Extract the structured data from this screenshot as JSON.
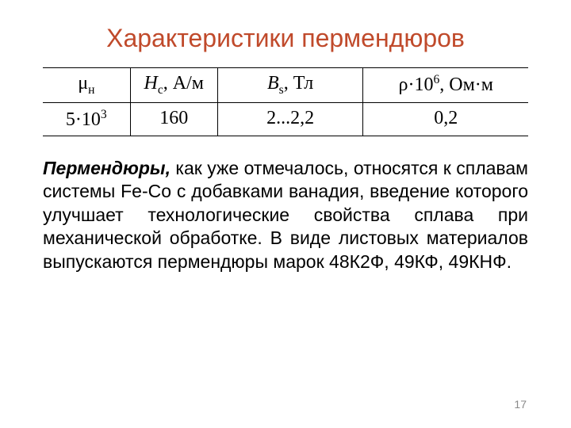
{
  "title": {
    "text": "Характеристики пермендюров",
    "color": "#c04a2b",
    "fontsize": 32
  },
  "table": {
    "font_family": "Times New Roman",
    "header_fontsize": 24,
    "cell_fontsize": 24,
    "border_color": "#000000",
    "col_widths_pct": [
      18,
      18,
      30,
      34
    ],
    "headers": {
      "c1": {
        "base": "μ",
        "sub": "н"
      },
      "c2": {
        "base_italic": "H",
        "sub": "c",
        "unit": ", А/м"
      },
      "c3": {
        "base_italic": "B",
        "sub": "s",
        "unit": ", Тл"
      },
      "c4": {
        "greek": "ρ·10",
        "sup": "6",
        "unit": ", Ом·м"
      }
    },
    "row": {
      "c1": {
        "base": "5·10",
        "sup": "3"
      },
      "c2": "160",
      "c3": "2...2,2",
      "c4": "0,2"
    }
  },
  "paragraph": {
    "lead": "Пермендюры,",
    "rest": " как уже отмечалось, относятся к сплавам системы Fe-Co с добавками ванадия, введение которого улучшает технологические свойства сплава при механической обработке. В виде листовых материалов выпускаются пермендюры марок 48К2Ф, 49КФ, 49КНФ.",
    "fontsize": 23,
    "color": "#000000"
  },
  "page_number": "17",
  "page_number_color": "#8a8a8a",
  "background_color": "#ffffff"
}
